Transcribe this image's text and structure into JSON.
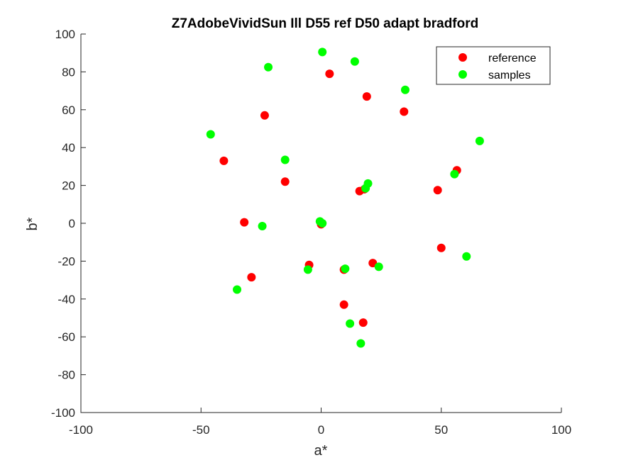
{
  "chart_data": {
    "type": "scatter",
    "title": "Z7AdobeVividSun Ill D55 ref D50 adapt bradford",
    "xlabel": "a*",
    "ylabel": "b*",
    "xlim": [
      -100,
      100
    ],
    "ylim": [
      -100,
      100
    ],
    "xticks": [
      -100,
      -50,
      0,
      50,
      100
    ],
    "yticks": [
      -100,
      -80,
      -60,
      -40,
      -20,
      0,
      20,
      40,
      60,
      80,
      100
    ],
    "grid": false,
    "legend_position": "top-right",
    "series": [
      {
        "name": "reference",
        "color": "#ff0000",
        "points": [
          [
            3.5,
            79
          ],
          [
            19,
            67
          ],
          [
            34.5,
            59
          ],
          [
            -23.5,
            57
          ],
          [
            -40.5,
            33
          ],
          [
            -15,
            22
          ],
          [
            16,
            17
          ],
          [
            18,
            18
          ],
          [
            48.5,
            17.5
          ],
          [
            56.5,
            28
          ],
          [
            -32,
            0.5
          ],
          [
            0,
            -0.5
          ],
          [
            50,
            -13
          ],
          [
            -5,
            -22
          ],
          [
            9.5,
            -24.5
          ],
          [
            21.5,
            -21
          ],
          [
            -29,
            -28.5
          ],
          [
            9.5,
            -43
          ],
          [
            17.5,
            -52.5
          ]
        ]
      },
      {
        "name": "samples",
        "color": "#00ff00",
        "points": [
          [
            0.5,
            90.5
          ],
          [
            14,
            85.5
          ],
          [
            -22,
            82.5
          ],
          [
            35,
            70.5
          ],
          [
            -46,
            47
          ],
          [
            -15,
            33.5
          ],
          [
            66,
            43.5
          ],
          [
            19.5,
            21
          ],
          [
            18.5,
            18.5
          ],
          [
            55.5,
            26
          ],
          [
            -0.5,
            1
          ],
          [
            0.5,
            0
          ],
          [
            -24.5,
            -1.5
          ],
          [
            60.5,
            -17.5
          ],
          [
            -5.5,
            -24.5
          ],
          [
            10,
            -24
          ],
          [
            24,
            -23
          ],
          [
            -35,
            -35
          ],
          [
            12,
            -53
          ],
          [
            16.5,
            -63.5
          ]
        ]
      }
    ]
  }
}
